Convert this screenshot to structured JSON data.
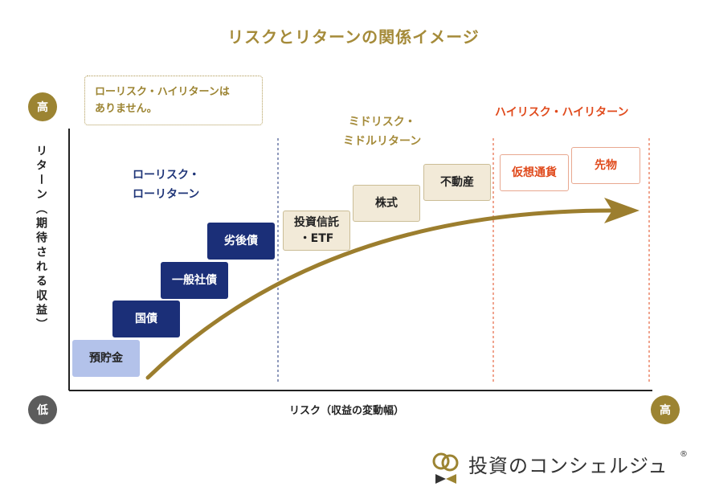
{
  "title": "リスクとリターンの関係イメージ",
  "axis": {
    "y_high": "高",
    "y_label": "リターン（期待される収益）",
    "origin": "低",
    "x_label": "リスク（収益の変動幅）",
    "x_high": "高"
  },
  "note": "ローリスク・ハイリターンは\nありません。",
  "zones": {
    "low": "ローリスク・\nローリターン",
    "mid": "ミドリスク・\nミドルリターン",
    "high": "ハイリスク・ハイリターン"
  },
  "items": {
    "deposit": "預貯金",
    "jgb": "国債",
    "corp_bond": "一般社債",
    "sub_bond": "劣後債",
    "trust_etf": "投資信託\n・ETF",
    "stocks": "株式",
    "real_estate": "不動産",
    "crypto": "仮想通貨",
    "futures": "先物"
  },
  "logo": {
    "text": "投資のコンシェルジュ",
    "reg": "®"
  },
  "colors": {
    "gold": "#9c8432",
    "navy": "#1b2f78",
    "light_blue": "#b3c2ea",
    "beige": "#f2ead8",
    "red": "#e04a1c",
    "arrow": "#9c7e2e"
  }
}
